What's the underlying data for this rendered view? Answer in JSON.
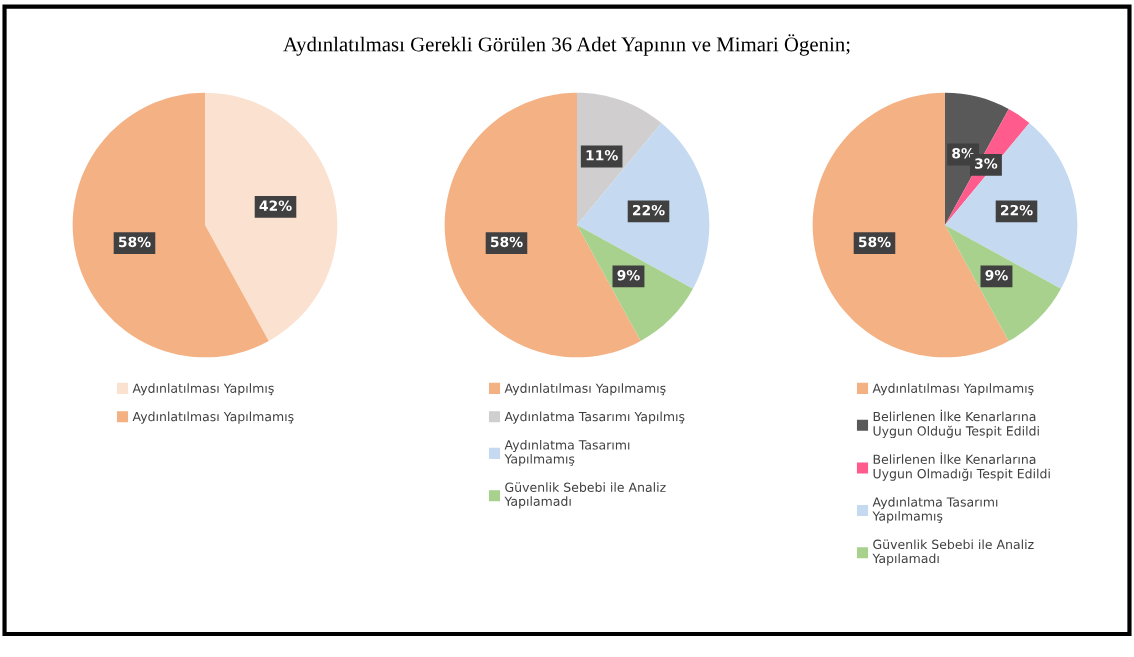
{
  "chart_data": [
    {
      "type": "pie",
      "title": "Aydınlatılması Gerekli Görülen 36 Adet Yapının ve Mimari Ögenin;",
      "categories": [
        "Aydınlatılması Yapılmış",
        "Aydınlatılması Yapılmamış"
      ],
      "values": [
        42,
        58
      ],
      "colors": [
        "#fbe2d0",
        "#f4b183"
      ],
      "value_labels": [
        "42%",
        "58%"
      ],
      "legend": "bottom"
    },
    {
      "type": "pie",
      "categories": [
        "Aydınlatılması Yapılmamış",
        "Aydınlatma Tasarımı Yapılmış",
        "Aydınlatma Tasarımı\nYapılmamış",
        "Güvenlik Sebebi ile Analiz\nYapılamadı"
      ],
      "values": [
        58,
        11,
        22,
        9
      ],
      "colors": [
        "#f4b183",
        "#d0cece",
        "#c5daf1",
        "#a9d18e"
      ],
      "value_labels": [
        "58%",
        "11%",
        "22%",
        "9%"
      ],
      "legend": "bottom"
    },
    {
      "type": "pie",
      "categories": [
        "Aydınlatılması Yapılmamış",
        "Belirlenen İlke Kenarlarına\nUygun Olduğu Tespit Edildi",
        "Belirlenen İlke Kenarlarına\nUygun Olmadığı Tespit Edildi",
        "Aydınlatma Tasarımı\nYapılmamış",
        "Güvenlik Sebebi ile Analiz\nYapılamadı"
      ],
      "values": [
        58,
        8,
        3,
        22,
        9
      ],
      "colors": [
        "#f4b183",
        "#595959",
        "#ff5b8c",
        "#c5daf1",
        "#a9d18e"
      ],
      "value_labels": [
        "58%",
        "8%",
        "3%",
        "22%",
        "9%"
      ],
      "legend": "bottom"
    }
  ]
}
